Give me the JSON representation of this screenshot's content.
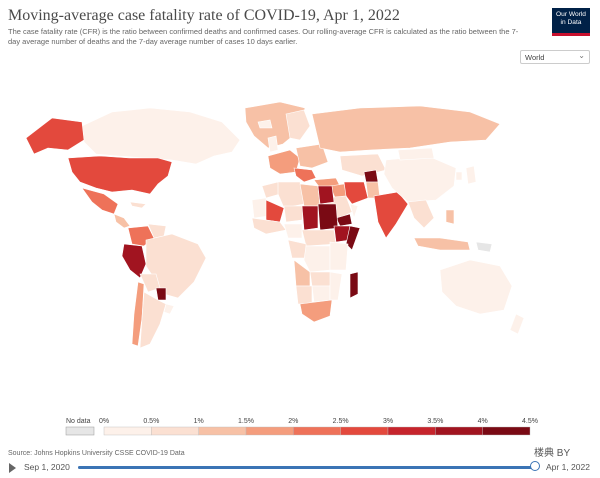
{
  "header": {
    "title": "Moving-average case fatality rate of COVID-19, Apr 1, 2022",
    "subtitle": "The case fatality rate (CFR) is the ratio between confirmed deaths and confirmed cases. Our rolling-average CFR is calculated as the ratio between the 7-day average number of deaths and the 7-day average number of cases 10 days earlier.",
    "logo_line1": "Our World",
    "logo_line2": "in Data"
  },
  "region_select": {
    "value": "World"
  },
  "legend": {
    "no_data_label": "No data",
    "ticks": [
      "0%",
      "0.5%",
      "1%",
      "1.5%",
      "2%",
      "2.5%",
      "3%",
      "3.5%",
      "4%",
      "4.5%"
    ],
    "bins": [
      {
        "from": 0,
        "to": 0.5,
        "color": "#fdf1ea"
      },
      {
        "from": 0.5,
        "to": 1,
        "color": "#fbe0d2"
      },
      {
        "from": 1,
        "to": 1.5,
        "color": "#f7c1a6"
      },
      {
        "from": 1.5,
        "to": 2,
        "color": "#f49d7d"
      },
      {
        "from": 2,
        "to": 2.5,
        "color": "#ee7259"
      },
      {
        "from": 2.5,
        "to": 3,
        "color": "#e3493d"
      },
      {
        "from": 3,
        "to": 3.5,
        "color": "#c6242c"
      },
      {
        "from": 3.5,
        "to": 4,
        "color": "#a11420"
      },
      {
        "from": 4,
        "to": 4.5,
        "color": "#7a0a14"
      }
    ],
    "no_data_color": "#e6e6e6"
  },
  "source": "Source: Johns Hopkins University CSSE COVID-19 Data",
  "watermark": "楼典 BY",
  "timeline": {
    "start": "Sep 1, 2020",
    "end": "Apr 1, 2022",
    "position": 1.0,
    "accent": "#3b74b5"
  }
}
